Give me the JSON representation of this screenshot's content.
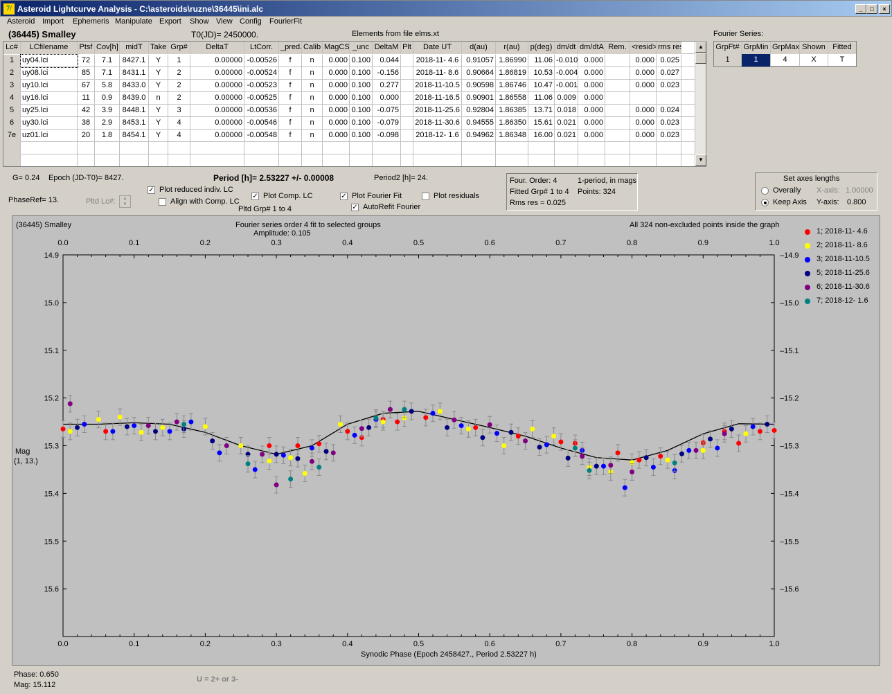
{
  "window": {
    "title": "Asteroid Lightcurve Analysis - C:\\asteroids\\ruzne\\36445\\ini.alc",
    "icon_letter": "7/"
  },
  "window_buttons": [
    "_",
    "□",
    "×"
  ],
  "menu": [
    "Asteroid",
    "Import",
    "Ephemeris",
    "Manipulate",
    "Export",
    "Show",
    "View",
    "Config",
    "FourierFit"
  ],
  "header": {
    "asteroid_name": "(36445) Smalley",
    "t0": "T0(JD)= 2450000.",
    "elements": "Elements from file elms.xt"
  },
  "lc_table": {
    "columns": [
      "Lc#",
      "LCfilename",
      "Ptsf",
      "Cov[h]",
      "midT",
      "Take",
      "Grp#",
      "DeltaT",
      "LtCorr.",
      "_pred.",
      "Calib",
      "MagCS",
      "_unc",
      "DeltaM",
      "Plt",
      "Date UT",
      "d(au)",
      "r(au)",
      "p(deg)",
      "dm/dt",
      "dm/dtA",
      "Rem.",
      "<resid>",
      "rms res"
    ],
    "rows": [
      [
        "1",
        "uy04.lci",
        "72",
        "7.1",
        "8427.1",
        "Y",
        "1",
        "0.00000",
        "-0.00526",
        "f",
        "n",
        "0.000",
        "0.100",
        "0.044",
        "",
        "2018-11- 4.6",
        "0.91057",
        "1.86990",
        "11.06",
        "-0.010",
        "0.000",
        "",
        "0.000",
        "0.025"
      ],
      [
        "2",
        "uy08.lci",
        "85",
        "7.1",
        "8431.1",
        "Y",
        "2",
        "0.00000",
        "-0.00524",
        "f",
        "n",
        "0.000",
        "0.100",
        "-0.156",
        "",
        "2018-11- 8.6",
        "0.90664",
        "1.86819",
        "10.53",
        "-0.004",
        "0.000",
        "",
        "0.000",
        "0.027"
      ],
      [
        "3",
        "uy10.lci",
        "67",
        "5.8",
        "8433.0",
        "Y",
        "2",
        "0.00000",
        "-0.00523",
        "f",
        "n",
        "0.000",
        "0.100",
        "0.277",
        "",
        "2018-11-10.5",
        "0.90598",
        "1.86746",
        "10.47",
        "-0.001",
        "0.000",
        "",
        "0.000",
        "0.023"
      ],
      [
        "4",
        "uy16.lci",
        "11",
        "0.9",
        "8439.0",
        "n",
        "2",
        "0.00000",
        "-0.00525",
        "f",
        "n",
        "0.000",
        "0.100",
        "0.000",
        "",
        "2018-11-16.5",
        "0.90901",
        "1.86558",
        "11.06",
        "0.009",
        "0.000",
        "",
        "",
        ""
      ],
      [
        "5",
        "uy25.lci",
        "42",
        "3.9",
        "8448.1",
        "Y",
        "3",
        "0.00000",
        "-0.00536",
        "f",
        "n",
        "0.000",
        "0.100",
        "-0.075",
        "",
        "2018-11-25.6",
        "0.92804",
        "1.86385",
        "13.71",
        "0.018",
        "0.000",
        "",
        "0.000",
        "0.024"
      ],
      [
        "6",
        "uy30.lci",
        "38",
        "2.9",
        "8453.1",
        "Y",
        "4",
        "0.00000",
        "-0.00546",
        "f",
        "n",
        "0.000",
        "0.100",
        "-0.079",
        "",
        "2018-11-30.6",
        "0.94555",
        "1.86350",
        "15.61",
        "0.021",
        "0.000",
        "",
        "0.000",
        "0.023"
      ],
      [
        "7e",
        "uz01.lci",
        "20",
        "1.8",
        "8454.1",
        "Y",
        "4",
        "0.00000",
        "-0.00548",
        "f",
        "n",
        "0.000",
        "0.100",
        "-0.098",
        "",
        "2018-12- 1.6",
        "0.94962",
        "1.86348",
        "16.00",
        "0.021",
        "0.000",
        "",
        "0.000",
        "0.023"
      ]
    ]
  },
  "fourier_series": {
    "label": "Fourier Series:",
    "columns": [
      "GrpFt#",
      "GrpMin",
      "GrpMax",
      "Shown",
      "Fitted"
    ],
    "row": [
      "1",
      "1",
      "4",
      "X",
      "T"
    ]
  },
  "info": {
    "g": "G= 0.24",
    "epoch": "Epoch (JD-T0)= 8427.",
    "period": "Period [h]= 2.53227 +/- 0.00008",
    "period2": "Period2 [h]= 24.",
    "phaseref": "PhaseRef= 13.",
    "pltd_lc": "Pltd Lc#:",
    "pltd_grp": "Pltd Grp#  1   to   4"
  },
  "checkboxes": {
    "plot_reduced": {
      "label": "Plot reduced indiv. LC",
      "checked": true
    },
    "align_comp": {
      "label": "Align with Comp. LC",
      "checked": false
    },
    "plot_comp": {
      "label": "Plot Comp. LC",
      "checked": true
    },
    "plot_fourier": {
      "label": "Plot Fourier Fit",
      "checked": true
    },
    "plot_residuals": {
      "label": "Plot residuals",
      "checked": false
    },
    "autorefit": {
      "label": "AutoRefit Fourier",
      "checked": true
    }
  },
  "fit_info": {
    "order": "Four. Order:  4",
    "period_mode": "1-period, in mags",
    "fitted_grp": "Fitted Grp# 1 to 4",
    "points": "Points: 324",
    "rms": "Rms res      = 0.025"
  },
  "axes_panel": {
    "title": "Set axes lengths",
    "overall": "Overally",
    "keep": "Keep Axis",
    "selected": "keep",
    "xaxis_label": "X-axis:",
    "xaxis_value": "1.00000",
    "yaxis_label": "Y-axis:",
    "yaxis_value": "0.800"
  },
  "plot": {
    "name": "(36445) Smalley",
    "title1": "Fourier series order 4 fit to selected groups",
    "title2": "Amplitude: 0.105",
    "note": "All 324 non-excluded points inside the graph",
    "ylabel1": "Mag",
    "ylabel2": "(1, 13.)",
    "xlabel": "Synodic Phase (Epoch 2458427., Period 2.53227 h)",
    "background": "#c0c0c0"
  },
  "chart_data": {
    "type": "scatter",
    "title": "Fourier series order 4 fit to selected groups",
    "subtitle": "Amplitude: 0.105",
    "xlabel": "Synodic Phase (Epoch 2458427., Period 2.53227 h)",
    "ylabel": "Mag",
    "xlim": [
      0.0,
      1.0
    ],
    "ylim": [
      15.7,
      14.9
    ],
    "y_inverted": true,
    "xticks": [
      "0.0",
      "0.1",
      "0.2",
      "0.3",
      "0.4",
      "0.5",
      "0.6",
      "0.7",
      "0.8",
      "0.9",
      "1.0"
    ],
    "yticks": [
      "14.9",
      "15.0",
      "15.1",
      "15.2",
      "15.3",
      "15.4",
      "15.5",
      "15.6"
    ],
    "fourier_fit": {
      "x": [
        0.0,
        0.05,
        0.1,
        0.15,
        0.2,
        0.25,
        0.3,
        0.35,
        0.4,
        0.45,
        0.5,
        0.55,
        0.6,
        0.65,
        0.7,
        0.75,
        0.8,
        0.85,
        0.9,
        0.95,
        1.0
      ],
      "y": [
        15.255,
        15.255,
        15.252,
        15.255,
        15.272,
        15.3,
        15.318,
        15.3,
        15.255,
        15.232,
        15.228,
        15.245,
        15.262,
        15.28,
        15.305,
        15.325,
        15.33,
        15.31,
        15.275,
        15.254,
        15.255
      ]
    },
    "series": [
      {
        "name": "1; 2018-11- 4.6",
        "color": "#ff0000",
        "x": [
          0.0,
          0.06,
          0.29,
          0.33,
          0.36,
          0.4,
          0.42,
          0.45,
          0.47,
          0.51,
          0.58,
          0.64,
          0.7,
          0.72,
          0.78,
          0.81,
          0.84,
          0.9,
          0.93,
          0.95,
          0.98,
          1.0
        ],
        "y": [
          15.265,
          15.27,
          15.3,
          15.3,
          15.296,
          15.27,
          15.283,
          15.245,
          15.25,
          15.241,
          15.262,
          15.28,
          15.292,
          15.295,
          15.315,
          15.33,
          15.322,
          15.294,
          15.27,
          15.295,
          15.27,
          15.268
        ]
      },
      {
        "name": "2; 2018-11- 8.6",
        "color": "#ffff00",
        "x": [
          0.01,
          0.05,
          0.08,
          0.11,
          0.14,
          0.2,
          0.25,
          0.29,
          0.32,
          0.34,
          0.39,
          0.45,
          0.48,
          0.53,
          0.57,
          0.62,
          0.66,
          0.69,
          0.74,
          0.77,
          0.8,
          0.85,
          0.9,
          0.96
        ],
        "y": [
          15.27,
          15.245,
          15.24,
          15.272,
          15.262,
          15.26,
          15.3,
          15.332,
          15.325,
          15.358,
          15.255,
          15.25,
          15.242,
          15.228,
          15.265,
          15.3,
          15.265,
          15.28,
          15.345,
          15.355,
          15.335,
          15.33,
          15.31,
          15.275
        ]
      },
      {
        "name": "3; 2018-11-10.5",
        "color": "#0000ff",
        "x": [
          0.03,
          0.07,
          0.1,
          0.15,
          0.18,
          0.22,
          0.27,
          0.31,
          0.35,
          0.41,
          0.44,
          0.52,
          0.56,
          0.61,
          0.68,
          0.73,
          0.76,
          0.79,
          0.83,
          0.86,
          0.88,
          0.92,
          0.97
        ],
        "y": [
          15.255,
          15.27,
          15.258,
          15.27,
          15.25,
          15.315,
          15.35,
          15.32,
          15.305,
          15.278,
          15.245,
          15.232,
          15.258,
          15.274,
          15.298,
          15.31,
          15.343,
          15.388,
          15.345,
          15.352,
          15.31,
          15.305,
          15.26
        ]
      },
      {
        "name": "5; 2018-11-25.6",
        "color": "#000080",
        "x": [
          0.02,
          0.09,
          0.13,
          0.17,
          0.21,
          0.26,
          0.3,
          0.33,
          0.37,
          0.43,
          0.49,
          0.54,
          0.59,
          0.63,
          0.67,
          0.71,
          0.75,
          0.82,
          0.87,
          0.91,
          0.94,
          0.99
        ],
        "y": [
          15.262,
          15.26,
          15.27,
          15.265,
          15.29,
          15.318,
          15.318,
          15.327,
          15.312,
          15.262,
          15.228,
          15.262,
          15.283,
          15.272,
          15.303,
          15.326,
          15.343,
          15.325,
          15.317,
          15.286,
          15.265,
          15.255
        ]
      },
      {
        "name": "6; 2018-11-30.6",
        "color": "#800080",
        "x": [
          0.01,
          0.12,
          0.16,
          0.23,
          0.28,
          0.3,
          0.35,
          0.38,
          0.42,
          0.46,
          0.55,
          0.6,
          0.65,
          0.73,
          0.77,
          0.8,
          0.89,
          0.93
        ],
        "y": [
          15.212,
          15.258,
          15.25,
          15.3,
          15.318,
          15.382,
          15.333,
          15.315,
          15.264,
          15.224,
          15.246,
          15.256,
          15.29,
          15.322,
          15.341,
          15.355,
          15.31,
          15.275
        ]
      },
      {
        "name": "7; 2018-12- 1.6",
        "color": "#008080",
        "x": [
          0.17,
          0.26,
          0.32,
          0.36,
          0.44,
          0.48,
          0.72,
          0.74,
          0.86
        ],
        "y": [
          15.255,
          15.338,
          15.37,
          15.345,
          15.242,
          15.224,
          15.305,
          15.352,
          15.336
        ]
      }
    ]
  },
  "status": {
    "phase": "Phase:  0.650",
    "mag": "Mag:    15.112",
    "hint": "U = 2+ or 3-"
  }
}
